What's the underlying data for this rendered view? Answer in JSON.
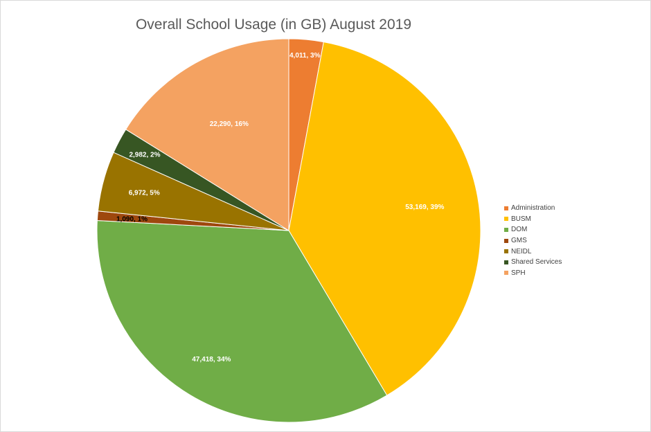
{
  "chart_data": {
    "type": "pie",
    "title": "Overall School Usage (in GB) August 2019",
    "slices": [
      {
        "name": "Administration",
        "value": 4011,
        "label": "4,011, 3%",
        "color": "#ED7D31",
        "label_color": "#ffffff"
      },
      {
        "name": "BUSM",
        "value": 53169,
        "label": "53,169, 39%",
        "color": "#FFC000",
        "label_color": "#ffffff"
      },
      {
        "name": "DOM",
        "value": 47418,
        "label": "47,418, 34%",
        "color": "#70AD47",
        "label_color": "#ffffff"
      },
      {
        "name": "GMS",
        "value": 1090,
        "label": "1,090, 1%",
        "color": "#9E480E",
        "label_color": "#000000"
      },
      {
        "name": "NEIDL",
        "value": 6972,
        "label": "6,972, 5%",
        "color": "#997300",
        "label_color": "#ffffff"
      },
      {
        "name": "Shared Services",
        "value": 2982,
        "label": "2,982, 2%",
        "color": "#375623",
        "label_color": "#ffffff"
      },
      {
        "name": "SPH",
        "value": 22290,
        "label": "22,290, 16%",
        "color": "#F4A261",
        "label_color": "#ffffff"
      }
    ],
    "legend_position": "right"
  }
}
